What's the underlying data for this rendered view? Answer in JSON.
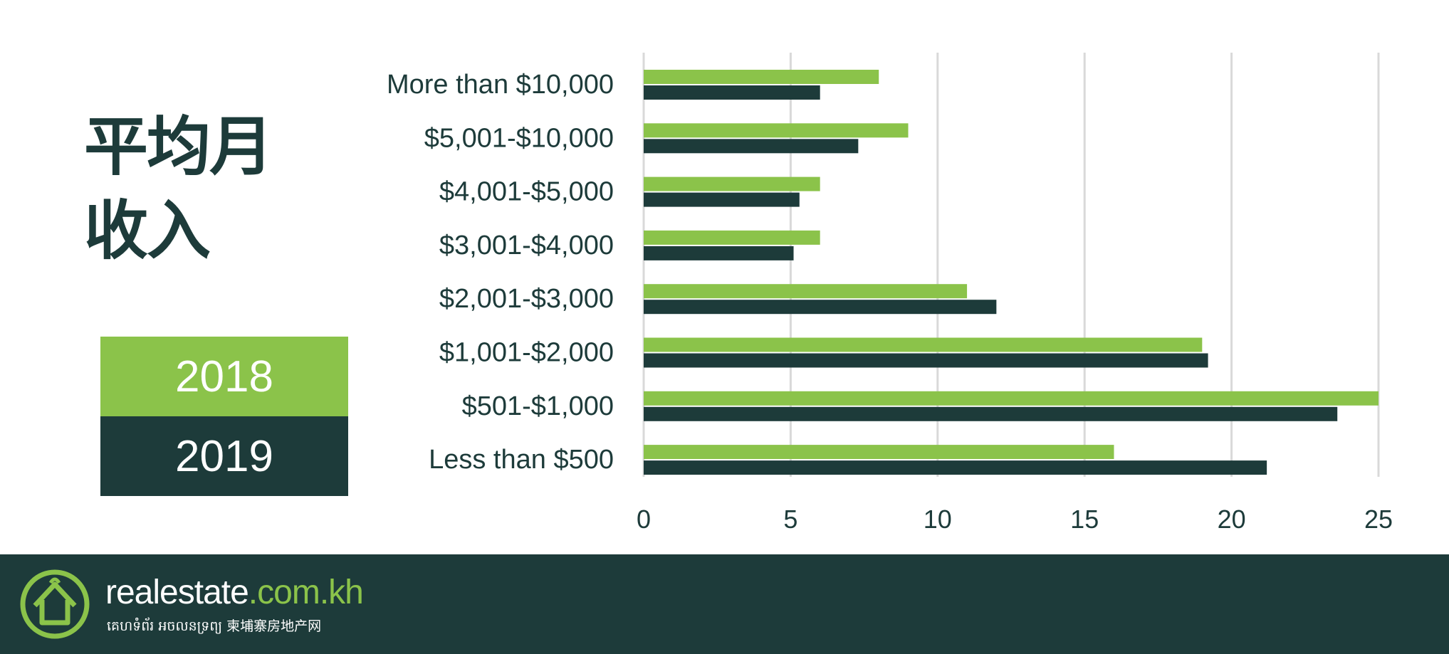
{
  "title": "平均月\n收入",
  "legend": [
    {
      "label": "2018",
      "color": "#8bc34a"
    },
    {
      "label": "2019",
      "color": "#1d3b3a"
    }
  ],
  "chart_data": {
    "type": "bar",
    "orientation": "horizontal",
    "categories": [
      "More than $10,000",
      "$5,001-$10,000",
      "$4,001-$5,000",
      "$3,001-$4,000",
      "$2,001-$3,000",
      "$1,001-$2,000",
      "$501-$1,000",
      "Less than $500"
    ],
    "series": [
      {
        "name": "2018",
        "color": "#8bc34a",
        "values": [
          8,
          9,
          6,
          6,
          11,
          19,
          25,
          16
        ]
      },
      {
        "name": "2019",
        "color": "#1d3b3a",
        "values": [
          6,
          7.3,
          5.3,
          5.1,
          12,
          19.2,
          23.6,
          21.2
        ]
      }
    ],
    "xlim": [
      0,
      25
    ],
    "xticks": [
      "0",
      "5",
      "10",
      "15",
      "20",
      "25"
    ],
    "grid": "vertical"
  },
  "footer": {
    "brand_main": "realestate",
    "brand_domain": ".com.kh",
    "tagline": "គេហទំព័រ អចលនទ្រព្យ   柬埔寨房地产网"
  }
}
